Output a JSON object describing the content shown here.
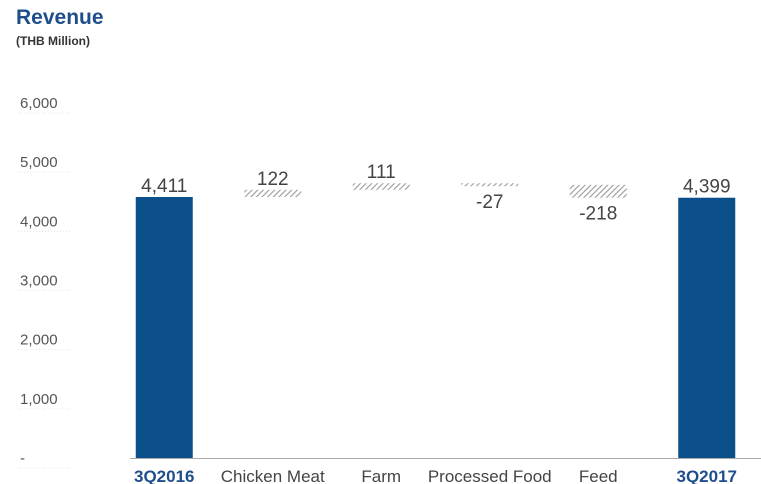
{
  "chart_data": {
    "type": "bar",
    "subtype": "waterfall",
    "title": "Revenue",
    "subtitle": "(THB Million)",
    "categories": [
      "3Q2016",
      "Chicken Meat",
      "Farm",
      "Processed Food",
      "Feed",
      "3Q2017"
    ],
    "values": [
      4411,
      122,
      111,
      -27,
      -218,
      4399
    ],
    "data_labels": [
      "4,411",
      "122",
      "111",
      "-27",
      "-218",
      "4,399"
    ],
    "kinds": [
      "total",
      "delta",
      "delta",
      "delta",
      "delta",
      "total"
    ],
    "ylim": [
      0,
      6000
    ],
    "yticks": [
      {
        "value": 0,
        "label": "-"
      },
      {
        "value": 1000,
        "label": "1,000"
      },
      {
        "value": 2000,
        "label": "2,000"
      },
      {
        "value": 3000,
        "label": "3,000"
      },
      {
        "value": 4000,
        "label": "4,000"
      },
      {
        "value": 5000,
        "label": "5,000"
      },
      {
        "value": 6000,
        "label": "6,000"
      }
    ],
    "grid": false,
    "colors": {
      "total_bar": "#0b4f8a",
      "delta_hatch": "#9a9a9a",
      "total_label": "#1f4e8c"
    }
  }
}
